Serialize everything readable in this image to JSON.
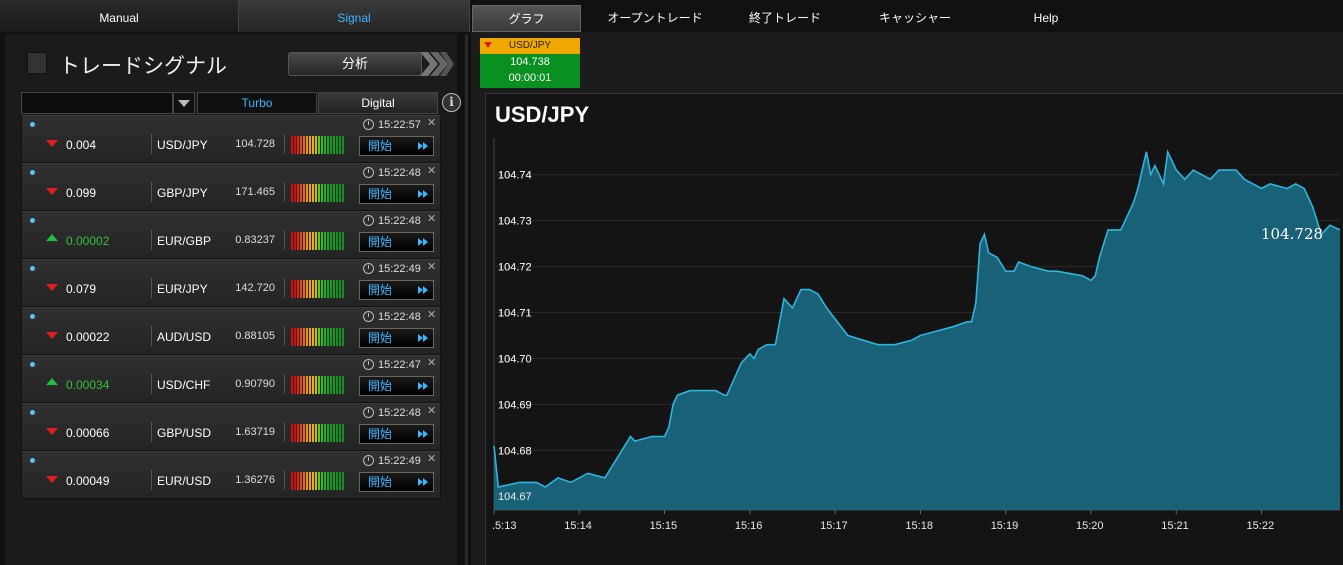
{
  "tabs": {
    "manual": "Manual",
    "signal": "Signal"
  },
  "nav": {
    "graph": "グラフ",
    "open_trades": "オープントレード",
    "closed_trades": "終了トレード",
    "cashier": "キャッシャー",
    "help": "Help"
  },
  "left": {
    "title": "トレードシグナル",
    "analyze_label": "分析",
    "filter_value": "",
    "tab_turbo": "Turbo",
    "tab_digital": "Digital",
    "info_label": "i"
  },
  "signals": [
    {
      "time": "15:22:57",
      "direction": "down",
      "value": "0.004",
      "pair": "USD/JPY",
      "price": "104.728",
      "start": "開始"
    },
    {
      "time": "15:22:48",
      "direction": "down",
      "value": "0.099",
      "pair": "GBP/JPY",
      "price": "171.465",
      "start": "開始"
    },
    {
      "time": "15:22:48",
      "direction": "up",
      "value": "0.00002",
      "pair": "EUR/GBP",
      "price": "0.83237",
      "start": "開始"
    },
    {
      "time": "15:22:49",
      "direction": "down",
      "value": "0.079",
      "pair": "EUR/JPY",
      "price": "142.720",
      "start": "開始"
    },
    {
      "time": "15:22:48",
      "direction": "down",
      "value": "0.00022",
      "pair": "AUD/USD",
      "price": "0.88105",
      "start": "開始"
    },
    {
      "time": "15:22:47",
      "direction": "up",
      "value": "0.00034",
      "pair": "USD/CHF",
      "price": "0.90790",
      "start": "開始"
    },
    {
      "time": "15:22:48",
      "direction": "down",
      "value": "0.00066",
      "pair": "GBP/USD",
      "price": "1.63719",
      "start": "開始"
    },
    {
      "time": "15:22:49",
      "direction": "down",
      "value": "0.00049",
      "pair": "EUR/USD",
      "price": "1.36276",
      "start": "開始"
    }
  ],
  "asset_tab": {
    "name": "USD/JPY",
    "price": "104.738",
    "timer": "00:00:01"
  },
  "colors": {
    "accent_blue": "#3ab7ff",
    "down_red": "#e02020",
    "up_green": "#20c040",
    "chart_line": "#2fb4dc",
    "chart_fill": "#1a6f88"
  },
  "chart_data": {
    "type": "area",
    "title": "USD/JPY",
    "current_label": "104.728",
    "x_ticks": [
      ".5:13",
      "15:14",
      "15:15",
      "15:16",
      "15:17",
      "15:18",
      "15:19",
      "15:20",
      "15:21",
      "15:22"
    ],
    "y_ticks": [
      "104.74",
      "104.73",
      "104.72",
      "104.71",
      "104.70",
      "104.69",
      "104.68",
      "104.67"
    ],
    "ylim": [
      104.667,
      104.748
    ],
    "xlim_minutes": [
      13.0,
      22.92
    ],
    "x_minutes": [
      13.0,
      13.05,
      13.3,
      13.5,
      13.6,
      13.75,
      13.9,
      14.1,
      14.3,
      14.6,
      14.65,
      14.85,
      15.0,
      15.05,
      15.1,
      15.15,
      15.3,
      15.5,
      15.6,
      15.7,
      15.73,
      15.9,
      16.0,
      16.05,
      16.1,
      16.2,
      16.3,
      16.35,
      16.4,
      16.5,
      16.6,
      16.7,
      16.8,
      16.9,
      17.15,
      17.5,
      17.7,
      17.9,
      18.0,
      18.2,
      18.4,
      18.55,
      18.6,
      18.65,
      18.7,
      18.75,
      18.8,
      18.9,
      19.0,
      19.1,
      19.15,
      19.3,
      19.5,
      19.6,
      19.9,
      20.0,
      20.05,
      20.1,
      20.2,
      20.3,
      20.35,
      20.4,
      20.45,
      20.5,
      20.55,
      20.6,
      20.65,
      20.7,
      20.75,
      20.8,
      20.85,
      20.9,
      21.0,
      21.1,
      21.2,
      21.3,
      21.4,
      21.5,
      21.6,
      21.7,
      21.8,
      21.9,
      22.0,
      22.1,
      22.3,
      22.4,
      22.5,
      22.6,
      22.65,
      22.7,
      22.8,
      22.92
    ],
    "y_values": [
      104.681,
      104.672,
      104.673,
      104.673,
      104.672,
      104.674,
      104.673,
      104.675,
      104.674,
      104.683,
      104.682,
      104.683,
      104.683,
      104.685,
      104.69,
      104.692,
      104.693,
      104.693,
      104.693,
      104.692,
      104.692,
      104.699,
      104.701,
      104.7,
      104.702,
      104.703,
      104.703,
      104.708,
      104.713,
      104.711,
      104.715,
      104.715,
      104.714,
      104.711,
      104.705,
      104.703,
      104.703,
      104.704,
      104.705,
      104.706,
      104.707,
      104.708,
      104.708,
      104.712,
      104.725,
      104.727,
      104.723,
      104.722,
      104.719,
      104.719,
      104.721,
      104.72,
      104.719,
      104.719,
      104.718,
      104.717,
      104.718,
      104.722,
      104.728,
      104.728,
      104.728,
      104.73,
      104.732,
      104.734,
      104.737,
      104.741,
      104.745,
      104.74,
      104.742,
      104.74,
      104.738,
      104.745,
      104.741,
      104.739,
      104.741,
      104.74,
      104.739,
      104.741,
      104.741,
      104.741,
      104.739,
      104.738,
      104.737,
      104.738,
      104.737,
      104.738,
      104.737,
      104.733,
      104.73,
      104.727,
      104.729,
      104.728
    ]
  }
}
